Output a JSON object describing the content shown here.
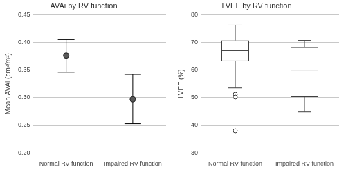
{
  "chart_data": [
    {
      "type": "errorbar",
      "title": "AVAi by RV function",
      "y_label": "Mean AVAi (cm²/m²)",
      "categories": [
        "Normal RV function",
        "Impaired RV function"
      ],
      "values": [
        0.376,
        0.297
      ],
      "error_low": [
        0.346,
        0.253
      ],
      "error_high": [
        0.405,
        0.342
      ],
      "color": "#595959",
      "marker": "circle",
      "ylim": [
        0.2,
        0.45
      ],
      "yticks": [
        {
          "value": 0.2,
          "label": "0.20"
        },
        {
          "value": 0.25,
          "label": "0.25"
        },
        {
          "value": 0.3,
          "label": "0.30"
        },
        {
          "value": 0.35,
          "label": "0.35"
        },
        {
          "value": 0.4,
          "label": "0.40"
        },
        {
          "value": 0.45,
          "label": "0.45"
        }
      ],
      "grid": true
    },
    {
      "type": "box",
      "title": "LVEF by RV function",
      "y_label": "LVEF (%)",
      "categories": [
        "Normal RV function",
        "Impaired RV function"
      ],
      "boxes": [
        {
          "whisker_low": 53.5,
          "q1": 63.2,
          "median": 67,
          "q3": 70.7,
          "whisker_high": 76.2,
          "outliers": [
            51.2,
            50.2,
            38
          ]
        },
        {
          "whisker_low": 44.8,
          "q1": 50.2,
          "median": 60,
          "q3": 68.2,
          "whisker_high": 70.7,
          "outliers": []
        }
      ],
      "color": "#404040",
      "ylim": [
        30,
        80
      ],
      "yticks": [
        30,
        40,
        50,
        60,
        70,
        80
      ],
      "grid": true
    }
  ]
}
